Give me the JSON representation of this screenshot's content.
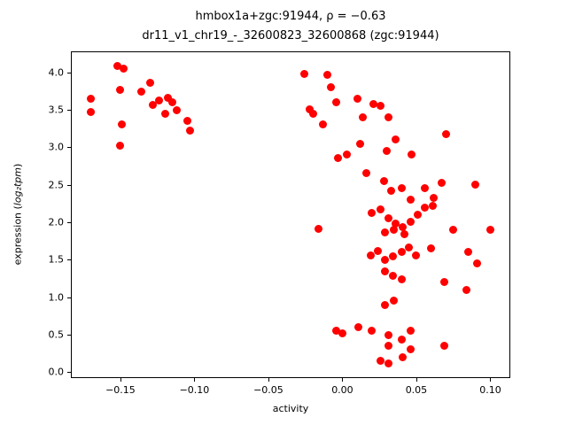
{
  "title": {
    "line1": "hmbox1a+zgc:91944, ρ = −0.63",
    "line2": "dr11_v1_chr19_-_32600823_32600868 (zgc:91944)"
  },
  "axes": {
    "xlabel": "activity",
    "ylabel_prefix": "expression (",
    "ylabel_math": "log₂tpm",
    "ylabel_suffix": ")"
  },
  "chart_data": {
    "type": "scatter",
    "title": "hmbox1a+zgc:91944, ρ = −0.63\ndr11_v1_chr19_-_32600823_32600868 (zgc:91944)",
    "xlabel": "activity",
    "ylabel": "expression (log₂tpm)",
    "legend": null,
    "grid": false,
    "marker_color": "#ff0000",
    "marker_diameter_px": 9,
    "xlim": [
      -0.1835,
      0.1135
    ],
    "ylim": [
      -0.078,
      4.278
    ],
    "xticks": [
      -0.15,
      -0.1,
      -0.05,
      0.0,
      0.05,
      0.1
    ],
    "xtick_labels": [
      "−0.15",
      "−0.10",
      "−0.05",
      "0.00",
      "0.05",
      "0.10"
    ],
    "yticks": [
      0.0,
      0.5,
      1.0,
      1.5,
      2.0,
      2.5,
      3.0,
      3.5,
      4.0
    ],
    "ytick_labels": [
      "0.0",
      "0.5",
      "1.0",
      "1.5",
      "2.0",
      "2.5",
      "3.0",
      "3.5",
      "4.0"
    ],
    "points": [
      [
        -0.17,
        3.65
      ],
      [
        -0.17,
        3.47
      ],
      [
        -0.152,
        4.08
      ],
      [
        -0.148,
        4.05
      ],
      [
        -0.15,
        3.76
      ],
      [
        -0.149,
        3.3
      ],
      [
        -0.15,
        3.02
      ],
      [
        -0.136,
        3.74
      ],
      [
        -0.13,
        3.86
      ],
      [
        -0.128,
        3.56
      ],
      [
        -0.124,
        3.62
      ],
      [
        -0.12,
        3.45
      ],
      [
        -0.118,
        3.66
      ],
      [
        -0.115,
        3.6
      ],
      [
        -0.112,
        3.49
      ],
      [
        -0.105,
        3.35
      ],
      [
        -0.103,
        3.22
      ],
      [
        -0.026,
        3.98
      ],
      [
        -0.01,
        3.97
      ],
      [
        -0.022,
        3.5
      ],
      [
        -0.02,
        3.44
      ],
      [
        -0.013,
        3.3
      ],
      [
        -0.008,
        3.8
      ],
      [
        -0.004,
        3.6
      ],
      [
        0.01,
        3.65
      ],
      [
        0.014,
        3.4
      ],
      [
        0.021,
        3.57
      ],
      [
        0.026,
        3.55
      ],
      [
        0.031,
        3.4
      ],
      [
        0.012,
        3.05
      ],
      [
        0.03,
        2.95
      ],
      [
        0.047,
        2.9
      ],
      [
        0.07,
        3.17
      ],
      [
        -0.003,
        2.85
      ],
      [
        0.003,
        2.9
      ],
      [
        0.036,
        3.1
      ],
      [
        0.016,
        2.65
      ],
      [
        0.028,
        2.55
      ],
      [
        0.033,
        2.42
      ],
      [
        0.04,
        2.46
      ],
      [
        0.046,
        2.3
      ],
      [
        0.056,
        2.45
      ],
      [
        0.062,
        2.33
      ],
      [
        0.067,
        2.52
      ],
      [
        0.09,
        2.5
      ],
      [
        0.02,
        2.12
      ],
      [
        0.026,
        2.17
      ],
      [
        0.031,
        2.05
      ],
      [
        0.036,
        1.98
      ],
      [
        0.041,
        1.93
      ],
      [
        0.046,
        2.0
      ],
      [
        0.051,
        2.1
      ],
      [
        0.056,
        2.2
      ],
      [
        0.061,
        2.22
      ],
      [
        -0.016,
        1.91
      ],
      [
        0.029,
        1.86
      ],
      [
        0.035,
        1.9
      ],
      [
        0.042,
        1.84
      ],
      [
        0.075,
        1.9
      ],
      [
        0.1,
        1.9
      ],
      [
        0.019,
        1.56
      ],
      [
        0.024,
        1.62
      ],
      [
        0.029,
        1.5
      ],
      [
        0.034,
        1.55
      ],
      [
        0.04,
        1.6
      ],
      [
        0.045,
        1.66
      ],
      [
        0.05,
        1.56
      ],
      [
        0.06,
        1.65
      ],
      [
        0.085,
        1.6
      ],
      [
        0.091,
        1.45
      ],
      [
        0.029,
        1.35
      ],
      [
        0.034,
        1.28
      ],
      [
        0.04,
        1.24
      ],
      [
        0.069,
        1.2
      ],
      [
        0.084,
        1.1
      ],
      [
        0.029,
        0.9
      ],
      [
        0.035,
        0.95
      ],
      [
        -0.004,
        0.55
      ],
      [
        0.0,
        0.52
      ],
      [
        0.011,
        0.6
      ],
      [
        0.02,
        0.55
      ],
      [
        0.031,
        0.5
      ],
      [
        0.04,
        0.44
      ],
      [
        0.046,
        0.55
      ],
      [
        0.031,
        0.35
      ],
      [
        0.046,
        0.3
      ],
      [
        0.069,
        0.35
      ],
      [
        0.026,
        0.15
      ],
      [
        0.031,
        0.12
      ],
      [
        0.041,
        0.2
      ]
    ]
  }
}
